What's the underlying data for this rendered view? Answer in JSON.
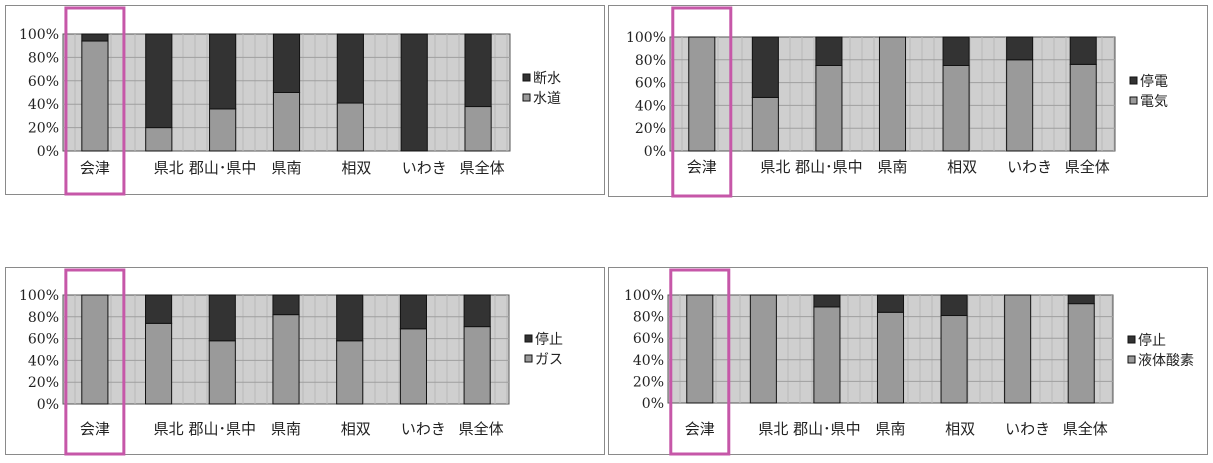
{
  "chart_data": [
    {
      "type": "bar",
      "stacked": true,
      "categories": [
        "会津",
        "県北",
        "郡山･県中",
        "県南",
        "相双",
        "いわき",
        "県全体"
      ],
      "y_ticks": [
        "100%",
        "80%",
        "60%",
        "40%",
        "20%",
        "0%"
      ],
      "ylim": [
        0,
        100
      ],
      "highlight_category": "会津",
      "legend_position": "right",
      "series": [
        {
          "name": "水道",
          "color": "#9a9a9a",
          "values": [
            94,
            20,
            36,
            50,
            41,
            0,
            38
          ]
        },
        {
          "name": "断水",
          "color": "#333333",
          "values": [
            6,
            80,
            64,
            50,
            59,
            100,
            62
          ]
        }
      ],
      "legend": [
        "断水",
        "水道"
      ]
    },
    {
      "type": "bar",
      "stacked": true,
      "categories": [
        "会津",
        "県北",
        "郡山･県中",
        "県南",
        "相双",
        "いわき",
        "県全体"
      ],
      "y_ticks": [
        "100%",
        "80%",
        "60%",
        "40%",
        "20%",
        "0%"
      ],
      "ylim": [
        0,
        100
      ],
      "highlight_category": "会津",
      "legend_position": "right",
      "series": [
        {
          "name": "電気",
          "color": "#9a9a9a",
          "values": [
            100,
            47,
            75,
            100,
            75,
            80,
            76
          ]
        },
        {
          "name": "停電",
          "color": "#333333",
          "values": [
            0,
            53,
            25,
            0,
            25,
            20,
            24
          ]
        }
      ],
      "legend": [
        "停電",
        "電気"
      ]
    },
    {
      "type": "bar",
      "stacked": true,
      "categories": [
        "会津",
        "県北",
        "郡山･県中",
        "県南",
        "相双",
        "いわき",
        "県全体"
      ],
      "y_ticks": [
        "100%",
        "80%",
        "60%",
        "40%",
        "20%",
        "0%"
      ],
      "ylim": [
        0,
        100
      ],
      "highlight_category": "会津",
      "legend_position": "right",
      "series": [
        {
          "name": "ガス",
          "color": "#9a9a9a",
          "values": [
            100,
            74,
            58,
            82,
            58,
            69,
            71
          ]
        },
        {
          "name": "停止",
          "color": "#333333",
          "values": [
            0,
            26,
            42,
            18,
            42,
            31,
            29
          ]
        }
      ],
      "legend": [
        "停止",
        "ガス"
      ]
    },
    {
      "type": "bar",
      "stacked": true,
      "categories": [
        "会津",
        "県北",
        "郡山･県中",
        "県南",
        "相双",
        "いわき",
        "県全体"
      ],
      "y_ticks": [
        "100%",
        "80%",
        "60%",
        "40%",
        "20%",
        "0%"
      ],
      "ylim": [
        0,
        100
      ],
      "highlight_category": "会津",
      "legend_position": "right",
      "series": [
        {
          "name": "液体酸素",
          "color": "#9a9a9a",
          "values": [
            100,
            100,
            89,
            84,
            81,
            100,
            92
          ]
        },
        {
          "name": "停止",
          "color": "#333333",
          "values": [
            0,
            0,
            11,
            16,
            19,
            0,
            8
          ]
        }
      ],
      "legend": [
        "停止",
        "液体酸素"
      ]
    }
  ]
}
